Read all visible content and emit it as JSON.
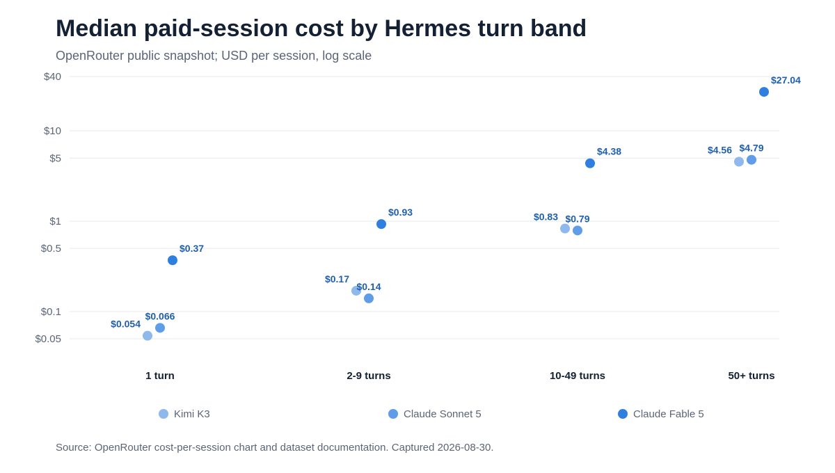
{
  "header": {
    "title": "Median paid-session cost by Hermes turn band",
    "subtitle": "OpenRouter public snapshot; USD per session, log scale"
  },
  "footer": {
    "source": "Source: OpenRouter cost-per-session chart and dataset documentation. Captured 2026-08-30."
  },
  "colors": {
    "series": [
      "#8fb8ec",
      "#5f9de8",
      "#2f7fe0"
    ],
    "label": "#1f5fae",
    "grid": "#e6e9ee",
    "tick": "#5b6577",
    "category": "#142033"
  },
  "chart_data": {
    "type": "scatter",
    "y_scale": "log",
    "ylim": [
      0.05,
      40
    ],
    "yticks": [
      40,
      10,
      5,
      1,
      0.5,
      0.1,
      0.05
    ],
    "ytick_labels": [
      "$40",
      "$10",
      "$5",
      "$1",
      "$0.5",
      "$0.1",
      "$0.05"
    ],
    "categories": [
      "1 turn",
      "2-9 turns",
      "10-49 turns",
      "50+ turns"
    ],
    "grid": true,
    "legend_position": "bottom",
    "series": [
      {
        "name": "Kimi K3",
        "values": [
          0.054,
          0.17,
          0.83,
          4.56
        ],
        "labels": [
          "$0.054",
          "$0.17",
          "$0.83",
          "$4.56"
        ]
      },
      {
        "name": "Claude Sonnet 5",
        "values": [
          0.066,
          0.14,
          0.79,
          4.79
        ],
        "labels": [
          "$0.066",
          "$0.14",
          "$0.79",
          "$4.79"
        ]
      },
      {
        "name": "Claude Fable 5",
        "values": [
          0.37,
          0.93,
          4.38,
          27.04
        ],
        "labels": [
          "$0.37",
          "$0.93",
          "$4.38",
          "$27.04"
        ]
      }
    ]
  }
}
